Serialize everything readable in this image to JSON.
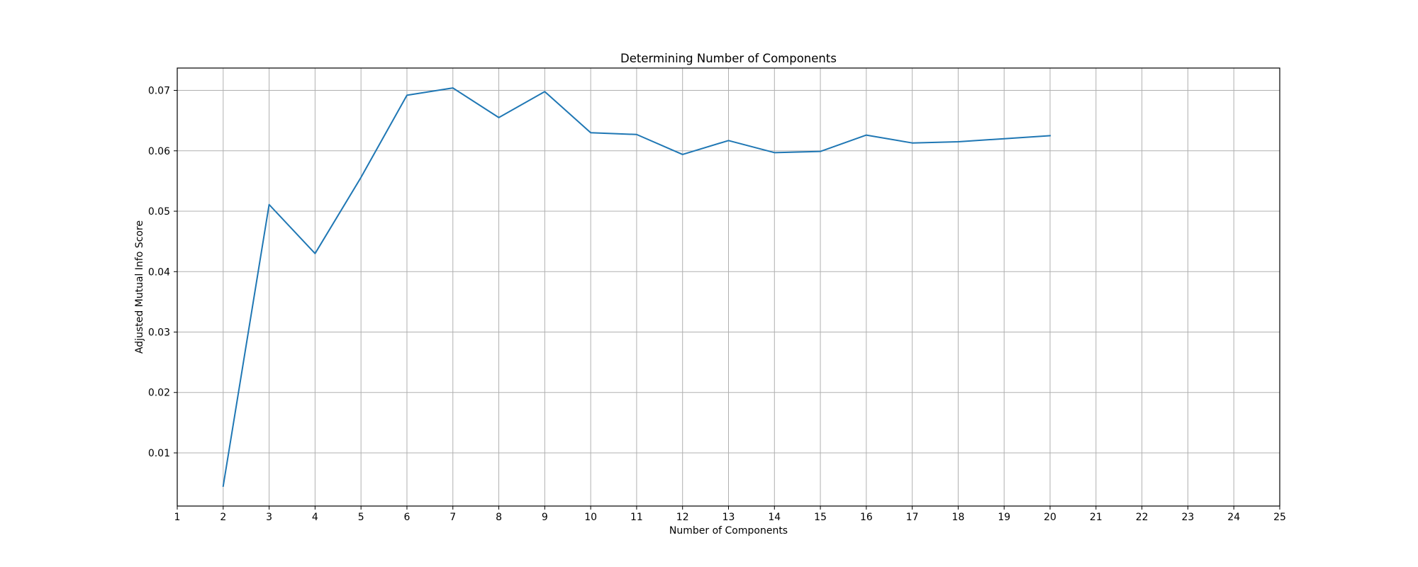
{
  "chart_data": {
    "type": "line",
    "title": "Determining Number of Components",
    "xlabel": "Number of Components",
    "ylabel": "Adjusted Mutual Info Score",
    "xlim": [
      1,
      25
    ],
    "ylim": [
      0.0012,
      0.0737
    ],
    "xticks": [
      1,
      2,
      3,
      4,
      5,
      6,
      7,
      8,
      9,
      10,
      11,
      12,
      13,
      14,
      15,
      16,
      17,
      18,
      19,
      20,
      21,
      22,
      23,
      24,
      25
    ],
    "yticks": [
      0.01,
      0.02,
      0.03,
      0.04,
      0.05,
      0.06,
      0.07
    ],
    "ytick_labels": [
      "0.01",
      "0.02",
      "0.03",
      "0.04",
      "0.05",
      "0.06",
      "0.07"
    ],
    "grid": true,
    "series": [
      {
        "color": "#1f77b4",
        "x": [
          2,
          3,
          4,
          5,
          6,
          7,
          8,
          9,
          10,
          11,
          12,
          13,
          14,
          15,
          16,
          17,
          18,
          19,
          20
        ],
        "y": [
          0.0045,
          0.0511,
          0.043,
          0.0556,
          0.0692,
          0.0704,
          0.0655,
          0.0698,
          0.063,
          0.0627,
          0.0594,
          0.0617,
          0.0597,
          0.0599,
          0.0626,
          0.0613,
          0.0615,
          0.062,
          0.0625
        ]
      }
    ]
  }
}
